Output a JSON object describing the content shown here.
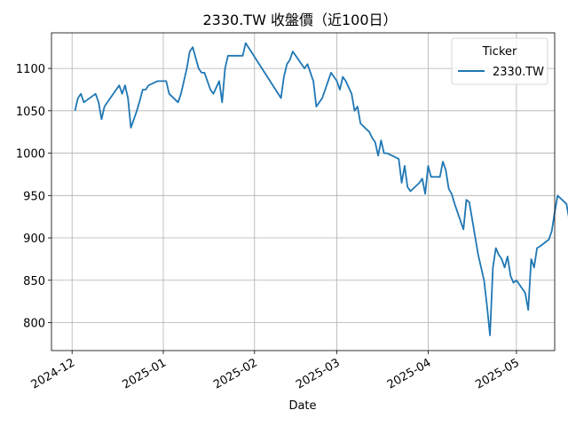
{
  "chart_data": {
    "type": "line",
    "title": "2330.TW 收盤價（近100日）",
    "xlabel": "Date",
    "ylabel": "",
    "x_ticks": [
      "2024-12",
      "2025-01",
      "2025-02",
      "2025-03",
      "2025-04",
      "2025-05"
    ],
    "y_ticks": [
      800,
      850,
      900,
      950,
      1000,
      1050,
      1100
    ],
    "xlim": [
      "2024-11-24",
      "2025-05-14"
    ],
    "ylim": [
      767,
      1142
    ],
    "grid": true,
    "legend": {
      "title": "Ticker",
      "placement": "top-right"
    },
    "colors": {
      "series": "#1f77b4",
      "grid": "#b0b0b0"
    },
    "series": [
      {
        "name": "2330.TW",
        "points": [
          [
            "2024-12-02",
            1050
          ],
          [
            "2024-12-03",
            1065
          ],
          [
            "2024-12-04",
            1070
          ],
          [
            "2024-12-05",
            1060
          ],
          [
            "2024-12-09",
            1070
          ],
          [
            "2024-12-10",
            1060
          ],
          [
            "2024-12-11",
            1040
          ],
          [
            "2024-12-12",
            1055
          ],
          [
            "2024-12-13",
            1060
          ],
          [
            "2024-12-16",
            1075
          ],
          [
            "2024-12-17",
            1080
          ],
          [
            "2024-12-18",
            1070
          ],
          [
            "2024-12-19",
            1080
          ],
          [
            "2024-12-20",
            1065
          ],
          [
            "2024-12-21",
            1030
          ],
          [
            "2024-12-23",
            1050
          ],
          [
            "2024-12-24",
            1062
          ],
          [
            "2024-12-25",
            1075
          ],
          [
            "2024-12-26",
            1075
          ],
          [
            "2024-12-27",
            1080
          ],
          [
            "2024-12-30",
            1085
          ],
          [
            "2024-12-31",
            1085
          ],
          [
            "2025-01-02",
            1085
          ],
          [
            "2025-01-03",
            1070
          ],
          [
            "2025-01-06",
            1060
          ],
          [
            "2025-01-07",
            1070
          ],
          [
            "2025-01-08",
            1085
          ],
          [
            "2025-01-09",
            1100
          ],
          [
            "2025-01-10",
            1120
          ],
          [
            "2025-01-11",
            1125
          ],
          [
            "2025-01-13",
            1100
          ],
          [
            "2025-01-14",
            1095
          ],
          [
            "2025-01-15",
            1095
          ],
          [
            "2025-01-16",
            1085
          ],
          [
            "2025-01-17",
            1075
          ],
          [
            "2025-01-18",
            1070
          ],
          [
            "2025-01-20",
            1085
          ],
          [
            "2025-01-21",
            1060
          ],
          [
            "2025-01-22",
            1100
          ],
          [
            "2025-01-23",
            1115
          ],
          [
            "2025-01-24",
            1115
          ],
          [
            "2025-01-27",
            1115
          ],
          [
            "2025-01-28",
            1115
          ],
          [
            "2025-01-29",
            1130
          ],
          [
            "2025-02-10",
            1065
          ],
          [
            "2025-02-11",
            1090
          ],
          [
            "2025-02-12",
            1105
          ],
          [
            "2025-02-13",
            1110
          ],
          [
            "2025-02-14",
            1120
          ],
          [
            "2025-02-15",
            1115
          ],
          [
            "2025-02-17",
            1105
          ],
          [
            "2025-02-18",
            1100
          ],
          [
            "2025-02-19",
            1105
          ],
          [
            "2025-02-20",
            1095
          ],
          [
            "2025-02-21",
            1085
          ],
          [
            "2025-02-22",
            1055
          ],
          [
            "2025-02-24",
            1065
          ],
          [
            "2025-02-25",
            1075
          ],
          [
            "2025-02-26",
            1085
          ],
          [
            "2025-02-27",
            1095
          ],
          [
            "2025-03-01",
            1085
          ],
          [
            "2025-03-02",
            1075
          ],
          [
            "2025-03-03",
            1090
          ],
          [
            "2025-03-04",
            1085
          ],
          [
            "2025-03-06",
            1070
          ],
          [
            "2025-03-07",
            1050
          ],
          [
            "2025-03-08",
            1055
          ],
          [
            "2025-03-09",
            1035
          ],
          [
            "2025-03-12",
            1025
          ],
          [
            "2025-03-13",
            1018
          ],
          [
            "2025-03-14",
            1013
          ],
          [
            "2025-03-15",
            997
          ],
          [
            "2025-03-16",
            1015
          ],
          [
            "2025-03-17",
            1000
          ],
          [
            "2025-03-18",
            1000
          ],
          [
            "2025-03-21",
            995
          ],
          [
            "2025-03-22",
            993
          ],
          [
            "2025-03-23",
            965
          ],
          [
            "2025-03-24",
            985
          ],
          [
            "2025-03-25",
            960
          ],
          [
            "2025-03-26",
            955
          ],
          [
            "2025-03-29",
            965
          ],
          [
            "2025-03-30",
            970
          ],
          [
            "2025-03-31",
            952
          ],
          [
            "2025-04-01",
            985
          ],
          [
            "2025-04-02",
            972
          ],
          [
            "2025-04-03",
            972
          ],
          [
            "2025-04-05",
            972
          ],
          [
            "2025-04-06",
            990
          ],
          [
            "2025-04-07",
            980
          ],
          [
            "2025-04-08",
            958
          ],
          [
            "2025-04-09",
            952
          ],
          [
            "2025-04-10",
            940
          ],
          [
            "2025-04-13",
            910
          ],
          [
            "2025-04-14",
            945
          ],
          [
            "2025-04-15",
            942
          ],
          [
            "2025-04-18",
            880
          ],
          [
            "2025-04-20",
            850
          ],
          [
            "2025-04-21",
            820
          ],
          [
            "2025-04-22",
            785
          ],
          [
            "2025-04-23",
            865
          ],
          [
            "2025-04-24",
            888
          ],
          [
            "2025-04-25",
            880
          ],
          [
            "2025-04-26",
            875
          ],
          [
            "2025-04-27",
            865
          ],
          [
            "2025-04-28",
            878
          ],
          [
            "2025-04-29",
            855
          ],
          [
            "2025-04-30",
            847
          ],
          [
            "2025-05-01",
            850
          ],
          [
            "2025-05-04",
            835
          ],
          [
            "2025-05-05",
            815
          ],
          [
            "2025-05-06",
            875
          ],
          [
            "2025-05-07",
            865
          ],
          [
            "2025-05-08",
            888
          ],
          [
            "2025-05-09",
            890
          ],
          [
            "2025-05-12",
            898
          ],
          [
            "2025-05-13",
            908
          ],
          [
            "2025-05-14",
            930
          ],
          [
            "2025-05-15",
            950
          ],
          [
            "2025-05-18",
            940
          ],
          [
            "2025-05-19",
            920
          ],
          [
            "2025-05-20",
            928
          ]
        ]
      }
    ]
  }
}
